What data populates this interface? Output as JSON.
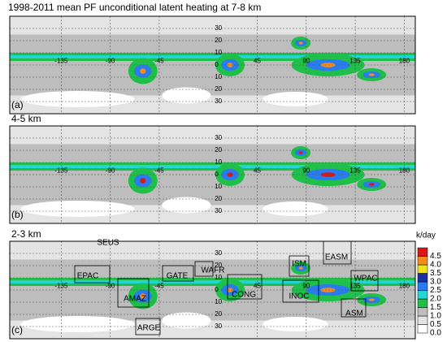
{
  "title": "1998-2011 mean PF unconditional latent heating at 7-8 km",
  "panels": [
    {
      "label": "(a)"
    },
    {
      "heading": "4-5 km",
      "label": "(b)"
    },
    {
      "heading": "2-3 km",
      "label": "(c)",
      "regions": [
        "SEUS",
        "EPAC",
        "AMAZ",
        "GATE",
        "WAFR",
        "CONG",
        "ISM",
        "INOC",
        "EASM",
        "WPAC",
        "ASM",
        "ARGE"
      ]
    }
  ],
  "lon_ticks": [
    -135,
    -90,
    -45,
    45,
    90,
    135,
    180
  ],
  "lat_ticks": [
    30,
    20,
    10,
    0,
    {
      "value": -10,
      "label": "10"
    },
    {
      "value": -20,
      "label": "20"
    },
    {
      "value": -30,
      "label": "30"
    }
  ],
  "colorbar": {
    "unit": "k/day",
    "levels": [
      {
        "value": 0,
        "label": "0.0"
      },
      0.5,
      {
        "value": 1,
        "label": "1.0"
      },
      1.5,
      {
        "value": 2,
        "label": "2.0"
      },
      2.5,
      {
        "value": 3,
        "label": "3.0"
      },
      3.5,
      {
        "value": 4,
        "label": "4.0"
      },
      4.5
    ],
    "colors": [
      "#ffffff",
      "#e4e4e4",
      "#bdbdbd",
      "#1fbf4a",
      "#22d4d4",
      "#2a7bf0",
      "#1a2fa8",
      "#f2e21c",
      "#f28c1c",
      "#d81818"
    ]
  }
}
